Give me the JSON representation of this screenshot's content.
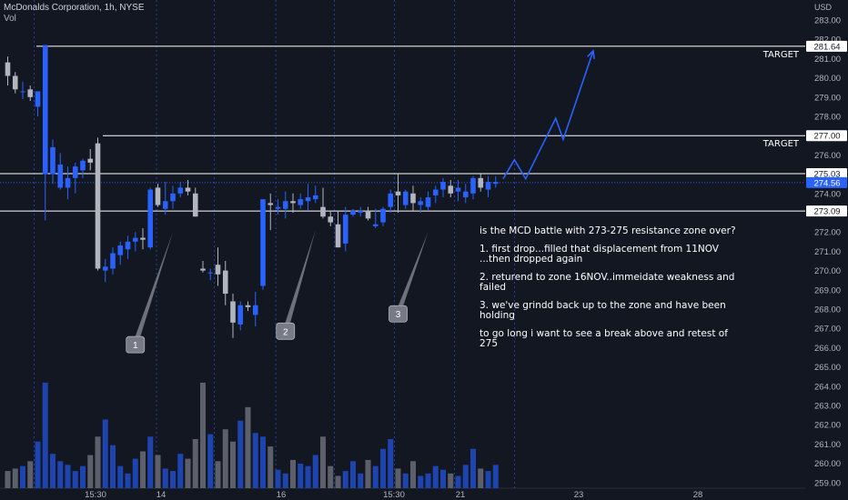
{
  "header": {
    "symbol": "McDonalds Corporation, 1h, NYSE",
    "volume_label": "Vol"
  },
  "axis": {
    "currency": "USD",
    "y_ticks": [
      "283.00",
      "282.00",
      "281.00",
      "280.00",
      "279.00",
      "278.00",
      "277.00",
      "276.00",
      "275.00",
      "274.00",
      "273.00",
      "272.00",
      "271.00",
      "270.00",
      "269.00",
      "268.00",
      "267.00",
      "266.00",
      "265.00",
      "264.00",
      "263.00",
      "262.00",
      "261.00",
      "260.00",
      "259.00"
    ],
    "x_ticks": [
      "15:30",
      "14",
      "16",
      "15:30",
      "21",
      "23",
      "28"
    ]
  },
  "chart_data": {
    "type": "candlestick",
    "title": "McDonalds Corporation, 1h, NYSE",
    "ylim": [
      258.7,
      284.0
    ],
    "x_tick_labels": [
      "15:30",
      "14",
      "16",
      "15:30",
      "21",
      "23",
      "28"
    ],
    "ohlc": [
      [
        280.8,
        281.1,
        279.6,
        280.1
      ],
      [
        280.1,
        280.3,
        279.2,
        279.4
      ],
      [
        279.3,
        279.8,
        278.9,
        279.3
      ],
      [
        279.4,
        279.6,
        278.8,
        279.0
      ],
      [
        278.5,
        279.3,
        278.0,
        279.3
      ],
      [
        275.0,
        281.7,
        272.6,
        281.7
      ],
      [
        275.0,
        276.8,
        274.5,
        276.4
      ],
      [
        274.3,
        276.1,
        274.2,
        275.5
      ],
      [
        274.3,
        275.4,
        273.7,
        274.8
      ],
      [
        274.8,
        275.6,
        274.0,
        275.4
      ],
      [
        275.2,
        275.8,
        274.8,
        275.7
      ],
      [
        275.8,
        276.3,
        275.2,
        275.6
      ],
      [
        276.6,
        276.9,
        270.0,
        270.1
      ],
      [
        270.0,
        270.6,
        269.4,
        270.2
      ],
      [
        270.1,
        271.2,
        269.8,
        270.9
      ],
      [
        270.8,
        271.5,
        270.3,
        271.3
      ],
      [
        271.1,
        271.8,
        270.6,
        271.5
      ],
      [
        271.5,
        272.0,
        271.0,
        271.7
      ],
      [
        271.7,
        272.2,
        271.1,
        271.6
      ],
      [
        271.2,
        274.3,
        271.1,
        274.2
      ],
      [
        274.3,
        274.5,
        273.3,
        273.4
      ],
      [
        273.2,
        274.6,
        272.9,
        273.6
      ],
      [
        273.6,
        274.4,
        273.2,
        274.0
      ],
      [
        274.0,
        274.6,
        273.8,
        274.3
      ],
      [
        274.3,
        274.7,
        273.9,
        274.1
      ],
      [
        274.0,
        274.3,
        272.8,
        272.8
      ],
      [
        270.1,
        270.5,
        269.9,
        270.0
      ],
      [
        269.9,
        270.1,
        269.5,
        269.9
      ],
      [
        270.3,
        271.2,
        269.2,
        269.8
      ],
      [
        270.0,
        270.5,
        268.2,
        268.8
      ],
      [
        268.4,
        268.8,
        266.5,
        267.3
      ],
      [
        267.2,
        268.4,
        266.9,
        268.2
      ],
      [
        268.2,
        268.4,
        267.9,
        268.1
      ],
      [
        267.7,
        268.9,
        267.1,
        268.2
      ],
      [
        269.2,
        273.6,
        269.0,
        273.7
      ],
      [
        273.5,
        274.0,
        272.1,
        273.4
      ],
      [
        273.2,
        273.7,
        272.9,
        273.3
      ],
      [
        273.2,
        274.1,
        272.7,
        273.6
      ],
      [
        273.6,
        274.0,
        273.0,
        273.5
      ],
      [
        273.4,
        274.0,
        273.2,
        273.7
      ],
      [
        273.6,
        274.5,
        273.1,
        273.8
      ],
      [
        273.7,
        274.4,
        273.5,
        273.9
      ],
      [
        273.3,
        274.3,
        272.7,
        272.8
      ],
      [
        272.8,
        273.1,
        272.3,
        272.5
      ],
      [
        272.4,
        273.1,
        271.2,
        271.2
      ],
      [
        271.4,
        273.3,
        271.0,
        272.9
      ],
      [
        272.9,
        273.2,
        272.8,
        273.1
      ],
      [
        273.0,
        273.3,
        272.8,
        273.1
      ],
      [
        273.1,
        273.3,
        272.6,
        272.7
      ],
      [
        272.3,
        273.2,
        272.2,
        272.4
      ],
      [
        272.5,
        273.3,
        272.3,
        273.2
      ],
      [
        273.3,
        274.2,
        273.0,
        274.0
      ],
      [
        274.1,
        275.0,
        273.0,
        273.9
      ],
      [
        273.4,
        274.2,
        273.2,
        274.1
      ],
      [
        274.0,
        274.4,
        273.1,
        273.5
      ],
      [
        273.4,
        273.8,
        273.0,
        273.6
      ],
      [
        273.3,
        274.1,
        273.1,
        273.8
      ],
      [
        273.9,
        274.4,
        273.5,
        274.2
      ],
      [
        274.2,
        274.8,
        273.8,
        274.6
      ],
      [
        274.4,
        274.7,
        273.8,
        274.0
      ],
      [
        274.1,
        274.7,
        273.6,
        274.3
      ],
      [
        273.8,
        274.5,
        273.5,
        274.1
      ],
      [
        274.0,
        274.9,
        273.7,
        274.8
      ],
      [
        274.8,
        275.0,
        274.1,
        274.3
      ],
      [
        274.2,
        274.9,
        273.8,
        274.6
      ],
      [
        274.5,
        274.9,
        274.3,
        274.6
      ]
    ],
    "volume": [
      0.14,
      0.16,
      0.18,
      0.22,
      0.38,
      0.86,
      0.28,
      0.22,
      0.19,
      0.14,
      0.18,
      0.27,
      0.42,
      0.56,
      0.35,
      0.18,
      0.12,
      0.24,
      0.3,
      0.42,
      0.27,
      0.16,
      0.14,
      0.28,
      0.24,
      0.4,
      0.86,
      0.44,
      0.22,
      0.48,
      0.38,
      0.55,
      0.66,
      0.45,
      0.42,
      0.34,
      0.15,
      0.12,
      0.23,
      0.2,
      0.18,
      0.27,
      0.42,
      0.18,
      0.1,
      0.14,
      0.22,
      0.12,
      0.23,
      0.18,
      0.32,
      0.4,
      0.16,
      0.12,
      0.22,
      0.1,
      0.12,
      0.18,
      0.15,
      0.12,
      0.1,
      0.19,
      0.32,
      0.16,
      0.14,
      0.19
    ],
    "levels": [
      {
        "price": 281.64,
        "label": "281.64",
        "color": "#ffffff"
      },
      {
        "price": 277.0,
        "label": "277.00",
        "color": "#ffffff"
      },
      {
        "price": 275.03,
        "label": "275.03",
        "color": "#ffffff"
      },
      {
        "price": 273.09,
        "label": "273.09",
        "color": "#ffffff"
      }
    ],
    "current_price": {
      "price": 274.56,
      "label": "274.56",
      "color": "#2962ff"
    },
    "targets": [
      {
        "label": "TARGET",
        "price": 281.64
      },
      {
        "label": "TARGET",
        "price": 277.0
      }
    ],
    "projection": [
      [
        66,
        274.76
      ],
      [
        67.5,
        275.75
      ],
      [
        69,
        274.76
      ],
      [
        73,
        277.9
      ],
      [
        74,
        276.8
      ],
      [
        78,
        281.4
      ]
    ],
    "callouts": [
      {
        "label": "1",
        "from_bar": 17,
        "from_price": 266.2,
        "to_bar": 22,
        "to_price": 272.0
      },
      {
        "label": "2",
        "from_bar": 37,
        "from_price": 266.9,
        "to_bar": 41,
        "to_price": 272.1
      },
      {
        "label": "3",
        "from_bar": 52,
        "from_price": 267.8,
        "to_bar": 56,
        "to_price": 272.0
      }
    ],
    "colors": {
      "up": "#2962ff",
      "down": "#b2b5be",
      "up_volume": "#1e44b0",
      "down_volume": "#5d606b"
    }
  },
  "notes": [
    "is the MCD battle with 273-275 resistance zone over?",
    "1. first drop...filled that displacement from 11NOV ...then dropped again",
    "2. returend to zone 16NOV..immeidate weakness and failed",
    "3. we've grindd back up to the zone and have been holding",
    "to go long i want to see a break above and retest of 275"
  ]
}
